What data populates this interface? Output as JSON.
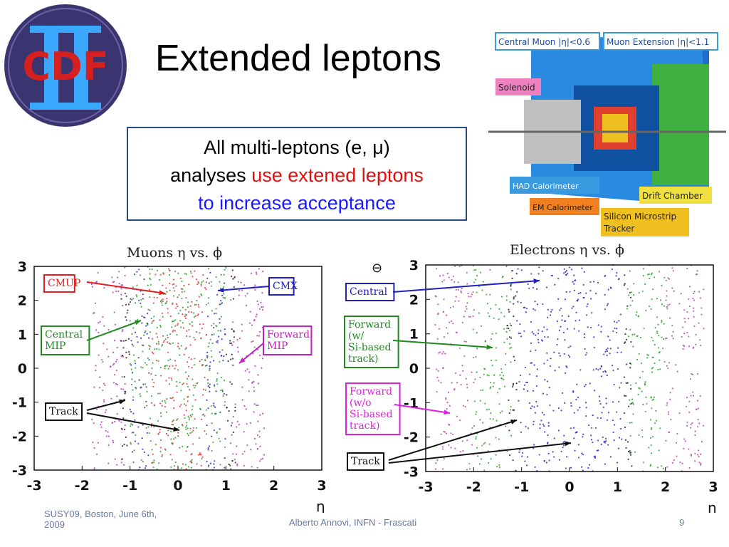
{
  "slide": {
    "title": "Extended leptons",
    "callout_line1": "All multi-leptons (e, μ)",
    "callout_line2_a": "analyses ",
    "callout_line2_b": "use extened leptons",
    "callout_line3": "to increase acceptance",
    "footer_left_1": "SUSY09, Boston, June 6th,",
    "footer_left_2": "2009",
    "footer_center": "Alberto Annovi, INFN - Frascati",
    "page_number": "9",
    "logo_text": "CDF",
    "logo_numeral": "II"
  },
  "detector": {
    "labels": [
      "Central Muon |η|<0.6",
      "Muon Extension |η|<1.1",
      "Solenoid",
      "HAD Calorimeter",
      "Drift Chamber",
      "EM Calorimeter",
      "Silicon Microstrip",
      "Tracker"
    ]
  },
  "chart_data": [
    {
      "type": "scatter",
      "title": "Muons η vs. ϕ",
      "xlabel": "η",
      "ylabel": "",
      "xlim": [
        -3,
        3
      ],
      "ylim": [
        -3,
        3
      ],
      "xticks": [
        "-3",
        "-2",
        "-1",
        "0",
        "1",
        "2",
        "3"
      ],
      "yticks": [
        "3",
        "2",
        "1",
        "0",
        "-1",
        "-2",
        "-3"
      ],
      "regions": [
        {
          "name": "Forward MIP",
          "color": "#b030b0",
          "eta_abs": [
            1.1,
            1.8
          ]
        },
        {
          "name": "Track",
          "color": "#111111",
          "eta_abs": [
            1.0,
            1.2
          ]
        },
        {
          "name": "CMX",
          "color": "#2020c0",
          "eta_abs": [
            0.6,
            1.0
          ]
        },
        {
          "name": "Central MIP",
          "color": "#20a020",
          "eta_abs": [
            0.0,
            1.0
          ]
        },
        {
          "name": "CMUP",
          "color": "#e03030",
          "eta_abs": [
            0.0,
            0.6
          ]
        }
      ],
      "annotations": [
        "CMUP",
        "CMX",
        "Central MIP",
        "Forward MIP",
        "Track"
      ]
    },
    {
      "type": "scatter",
      "title": "Electrons η vs. ϕ",
      "xlabel": "η",
      "ylabel": "",
      "xlim": [
        -3,
        3
      ],
      "ylim": [
        -3,
        3
      ],
      "xticks": [
        "-3",
        "-2",
        "-1",
        "0",
        "1",
        "2",
        "3"
      ],
      "yticks": [
        "3",
        "2",
        "1",
        "0",
        "-1",
        "-2",
        "-3"
      ],
      "regions": [
        {
          "name": "Forward (w/o Si-based track)",
          "color": "#b040b0",
          "eta_abs": [
            2.0,
            2.8
          ]
        },
        {
          "name": "Forward (w/ Si-based track)",
          "color": "#20a020",
          "eta_abs": [
            1.2,
            2.0
          ]
        },
        {
          "name": "Central",
          "color": "#2020c0",
          "eta_abs": [
            0.0,
            1.1
          ]
        },
        {
          "name": "Track",
          "color": "#111111",
          "eta_abs": [
            1.1,
            1.3
          ]
        }
      ],
      "annotations": [
        "Central",
        "Forward (w/ Si-based track)",
        "Forward (w/o Si-based track)",
        "Track"
      ],
      "symbol": "⊖"
    }
  ],
  "labels_muon": {
    "cmup": "CMUP",
    "cmx": "CMX",
    "central_mip_1": "Central",
    "central_mip_2": "MIP",
    "forward_mip_1": "Forward",
    "forward_mip_2": "MIP",
    "track": "Track"
  },
  "labels_electron": {
    "central": "Central",
    "fw_1": "Forward",
    "fw_2": "(w/",
    "fw_3": "Si-based",
    "fw_4": "track)",
    "fwo_1": "Forward",
    "fwo_2": "(w/o",
    "fwo_3": "Si-based",
    "fwo_4": "track)",
    "track": "Track"
  }
}
